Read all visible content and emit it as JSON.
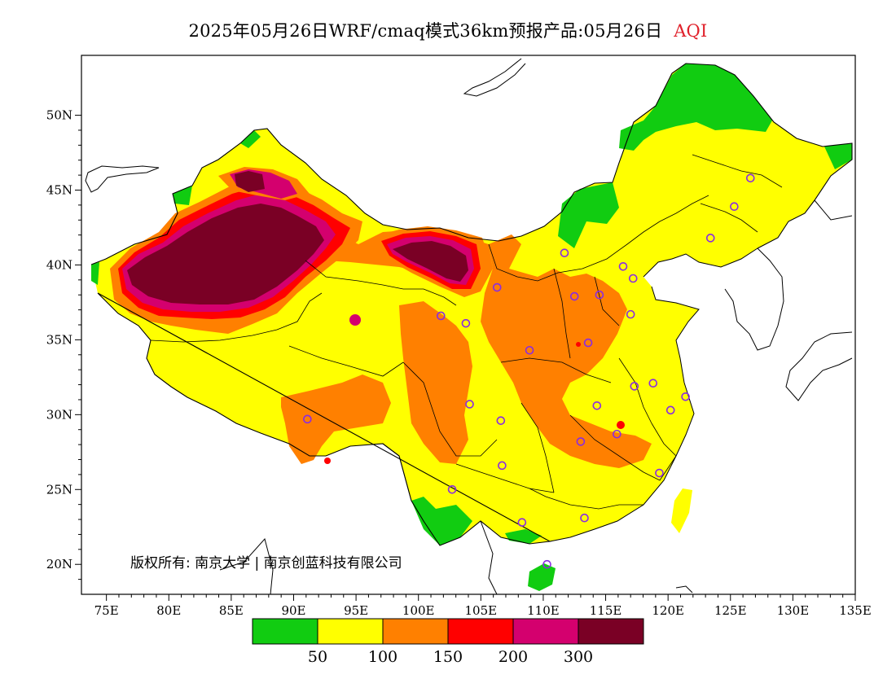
{
  "title": {
    "main": "2025年05月26日WRF/cmaq模式36km预报产品:05月26日",
    "variable": "AQI"
  },
  "axes": {
    "x_ticks": [
      "75E",
      "80E",
      "85E",
      "90E",
      "95E",
      "100E",
      "105E",
      "110E",
      "115E",
      "120E",
      "125E",
      "130E",
      "135E"
    ],
    "y_ticks": [
      "50N",
      "45N",
      "40N",
      "35N",
      "30N",
      "25N",
      "20N"
    ],
    "x_range": [
      73,
      135
    ],
    "y_range": [
      18,
      54
    ]
  },
  "legend": {
    "colors": [
      "#11cc11",
      "#ffff00",
      "#ff8000",
      "#ff0000",
      "#d4006e",
      "#7a0025"
    ],
    "labels": [
      "50",
      "100",
      "150",
      "200",
      "300"
    ]
  },
  "copyright": "版权所有: 南京大学 | 南京创蓝科技有限公司",
  "stations": [
    [
      126.6,
      45.8
    ],
    [
      125.3,
      43.9
    ],
    [
      123.4,
      41.8
    ],
    [
      116.4,
      39.9
    ],
    [
      117.2,
      39.1
    ],
    [
      114.5,
      38.0
    ],
    [
      112.5,
      37.9
    ],
    [
      111.7,
      40.8
    ],
    [
      106.3,
      38.5
    ],
    [
      101.8,
      36.6
    ],
    [
      103.8,
      36.1
    ],
    [
      108.9,
      34.3
    ],
    [
      113.6,
      34.8
    ],
    [
      117.0,
      36.7
    ],
    [
      117.3,
      31.9
    ],
    [
      118.8,
      32.1
    ],
    [
      121.4,
      31.2
    ],
    [
      120.2,
      30.3
    ],
    [
      114.3,
      30.6
    ],
    [
      113.0,
      28.2
    ],
    [
      115.9,
      28.7
    ],
    [
      119.3,
      26.1
    ],
    [
      106.6,
      29.6
    ],
    [
      104.1,
      30.7
    ],
    [
      106.7,
      26.6
    ],
    [
      102.7,
      25.0
    ],
    [
      108.3,
      22.8
    ],
    [
      113.3,
      23.1
    ],
    [
      110.3,
      20.0
    ],
    [
      91.1,
      29.7
    ]
  ]
}
